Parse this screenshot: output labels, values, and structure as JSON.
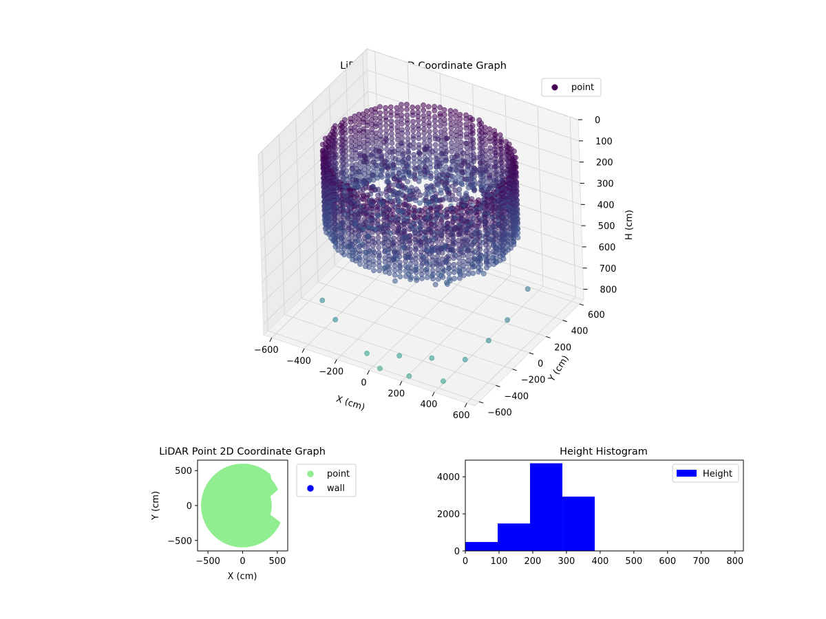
{
  "chart_data": [
    {
      "type": "scatter",
      "dimensions": 3,
      "title": "LiDAR Point 3D Coordinate Graph",
      "xlabel": "X (cm)",
      "ylabel": "Y (cm)",
      "zlabel": "H (cm)",
      "x_ticks": [
        "−600",
        "−400",
        "−200",
        "0",
        "200",
        "400",
        "600"
      ],
      "y_ticks": [
        "−600",
        "−400",
        "−200",
        "0",
        "200",
        "400",
        "600"
      ],
      "z_ticks": [
        "0",
        "100",
        "200",
        "300",
        "400",
        "500",
        "600",
        "700",
        "800"
      ],
      "xlim": [
        -650,
        650
      ],
      "ylim": [
        -650,
        650
      ],
      "zlim": [
        0,
        850
      ],
      "z_inverted": true,
      "grid": true,
      "legend": {
        "placement": "top-right",
        "entries": [
          {
            "label": "point",
            "color": "#440154"
          }
        ]
      },
      "colormap": "viridis",
      "series": [
        {
          "name": "point",
          "shape": "ring",
          "ring_radius": 520,
          "ring_height_range": [
            120,
            380
          ],
          "interior_points": "dense, heights 150-450",
          "outlier_points": [
            [
              -60,
              -560,
              820
            ],
            [
              120,
              -520,
              800
            ],
            [
              300,
              -480,
              780
            ],
            [
              480,
              -430,
              760
            ],
            [
              560,
              -300,
              700
            ],
            [
              600,
              -150,
              650
            ],
            [
              620,
              60,
              580
            ],
            [
              -260,
              -540,
              720
            ],
            [
              -380,
              -460,
              690
            ],
            [
              40,
              -600,
              850
            ],
            [
              220,
              -600,
              840
            ],
            [
              420,
              -580,
              820
            ]
          ]
        }
      ]
    },
    {
      "type": "scatter",
      "title": "LiDAR Point 2D Coordinate Graph",
      "xlabel": "X (cm)",
      "ylabel": "Y (cm)",
      "x_ticks": [
        "−500",
        "0",
        "500"
      ],
      "y_ticks": [
        "−500",
        "0",
        "500"
      ],
      "xlim": [
        -650,
        650
      ],
      "ylim": [
        -650,
        650
      ],
      "legend": {
        "placement": "outside-right",
        "entries": [
          {
            "label": "point",
            "color": "#90ee90"
          },
          {
            "label": "wall",
            "color": "#0000ff"
          }
        ]
      },
      "series": [
        {
          "name": "point",
          "color": "#90ee90",
          "shape": "filled disc, radius ~600 with notches at right"
        },
        {
          "name": "wall",
          "color": "#0000ff",
          "points": []
        }
      ]
    },
    {
      "type": "bar",
      "subtype": "histogram",
      "title": "Height Histogram",
      "x_ticks": [
        "0",
        "100",
        "200",
        "300",
        "400",
        "500",
        "600",
        "700",
        "800"
      ],
      "y_ticks": [
        "0",
        "2000",
        "4000"
      ],
      "xlim": [
        0,
        825
      ],
      "ylim": [
        0,
        4900
      ],
      "bins": [
        {
          "start": 0,
          "end": 96,
          "count": 480
        },
        {
          "start": 96,
          "end": 192,
          "count": 1480
        },
        {
          "start": 192,
          "end": 288,
          "count": 4730
        },
        {
          "start": 288,
          "end": 384,
          "count": 2930
        },
        {
          "start": 384,
          "end": 480,
          "count": 0
        },
        {
          "start": 480,
          "end": 576,
          "count": 0
        },
        {
          "start": 576,
          "end": 672,
          "count": 0
        },
        {
          "start": 672,
          "end": 768,
          "count": 0
        },
        {
          "start": 768,
          "end": 864,
          "count": 0
        }
      ],
      "color": "#0000ff",
      "legend": {
        "placement": "top-right",
        "entries": [
          {
            "label": "Height",
            "color": "#0000ff"
          }
        ]
      }
    }
  ]
}
